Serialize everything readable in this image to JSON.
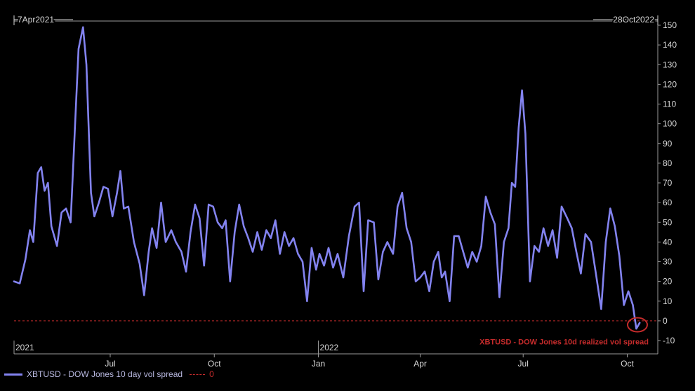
{
  "chart_data": {
    "type": "line",
    "range_start_label": "7Apr2021",
    "range_end_label": "28Oct2022",
    "ylim": [
      -10,
      150
    ],
    "y_ticks": [
      -10,
      0,
      10,
      20,
      30,
      40,
      50,
      60,
      70,
      80,
      90,
      100,
      110,
      120,
      130,
      140,
      150
    ],
    "x_ticks": [
      {
        "date": "2021-07-01",
        "label": "Jul"
      },
      {
        "date": "2021-10-01",
        "label": "Oct"
      },
      {
        "date": "2022-01-01",
        "label": "Jan"
      },
      {
        "date": "2022-04-01",
        "label": "Apr"
      },
      {
        "date": "2022-07-01",
        "label": "Jul"
      },
      {
        "date": "2022-10-01",
        "label": "Oct"
      }
    ],
    "year_labels": [
      {
        "date": "2021-04-07",
        "label": "2021"
      },
      {
        "date": "2022-01-01",
        "label": "2022"
      }
    ],
    "series": [
      {
        "name": "XBTUSD - DOW Jones 10 day vol spread",
        "color": "#8383f0",
        "points": [
          [
            "2021-04-07",
            20
          ],
          [
            "2021-04-12",
            19
          ],
          [
            "2021-04-17",
            31
          ],
          [
            "2021-04-21",
            46
          ],
          [
            "2021-04-24",
            40
          ],
          [
            "2021-04-28",
            75
          ],
          [
            "2021-05-01",
            78
          ],
          [
            "2021-05-04",
            66
          ],
          [
            "2021-05-07",
            70
          ],
          [
            "2021-05-10",
            48
          ],
          [
            "2021-05-15",
            38
          ],
          [
            "2021-05-19",
            55
          ],
          [
            "2021-05-23",
            57
          ],
          [
            "2021-05-27",
            50
          ],
          [
            "2021-05-31",
            100
          ],
          [
            "2021-06-03",
            138
          ],
          [
            "2021-06-07",
            149
          ],
          [
            "2021-06-10",
            130
          ],
          [
            "2021-06-14",
            65
          ],
          [
            "2021-06-17",
            53
          ],
          [
            "2021-06-21",
            60
          ],
          [
            "2021-06-25",
            68
          ],
          [
            "2021-06-29",
            67
          ],
          [
            "2021-07-03",
            53
          ],
          [
            "2021-07-07",
            65
          ],
          [
            "2021-07-10",
            76
          ],
          [
            "2021-07-13",
            57
          ],
          [
            "2021-07-17",
            58
          ],
          [
            "2021-07-22",
            40
          ],
          [
            "2021-07-27",
            29
          ],
          [
            "2021-07-31",
            13
          ],
          [
            "2021-08-04",
            35
          ],
          [
            "2021-08-07",
            47
          ],
          [
            "2021-08-11",
            37
          ],
          [
            "2021-08-15",
            60
          ],
          [
            "2021-08-19",
            40
          ],
          [
            "2021-08-24",
            46
          ],
          [
            "2021-08-28",
            40
          ],
          [
            "2021-09-02",
            35
          ],
          [
            "2021-09-06",
            25
          ],
          [
            "2021-09-10",
            45
          ],
          [
            "2021-09-14",
            59
          ],
          [
            "2021-09-18",
            52
          ],
          [
            "2021-09-22",
            28
          ],
          [
            "2021-09-26",
            59
          ],
          [
            "2021-09-30",
            58
          ],
          [
            "2021-10-04",
            50
          ],
          [
            "2021-10-08",
            47
          ],
          [
            "2021-10-11",
            51
          ],
          [
            "2021-10-15",
            20
          ],
          [
            "2021-10-19",
            45
          ],
          [
            "2021-10-23",
            59
          ],
          [
            "2021-10-27",
            48
          ],
          [
            "2021-10-31",
            42
          ],
          [
            "2021-11-04",
            35
          ],
          [
            "2021-11-08",
            45
          ],
          [
            "2021-11-12",
            36
          ],
          [
            "2021-11-16",
            46
          ],
          [
            "2021-11-20",
            42
          ],
          [
            "2021-11-24",
            51
          ],
          [
            "2021-11-28",
            34
          ],
          [
            "2021-12-02",
            45
          ],
          [
            "2021-12-06",
            38
          ],
          [
            "2021-12-10",
            42
          ],
          [
            "2021-12-14",
            34
          ],
          [
            "2021-12-18",
            30
          ],
          [
            "2021-12-22",
            10
          ],
          [
            "2021-12-26",
            37
          ],
          [
            "2021-12-30",
            26
          ],
          [
            "2022-01-02",
            34
          ],
          [
            "2022-01-06",
            28
          ],
          [
            "2022-01-10",
            37
          ],
          [
            "2022-01-14",
            27
          ],
          [
            "2022-01-18",
            34
          ],
          [
            "2022-01-23",
            22
          ],
          [
            "2022-01-28",
            43
          ],
          [
            "2022-02-02",
            58
          ],
          [
            "2022-02-06",
            60
          ],
          [
            "2022-02-10",
            15
          ],
          [
            "2022-02-14",
            51
          ],
          [
            "2022-02-19",
            50
          ],
          [
            "2022-02-23",
            21
          ],
          [
            "2022-02-27",
            35
          ],
          [
            "2022-03-03",
            40
          ],
          [
            "2022-03-08",
            34
          ],
          [
            "2022-03-12",
            58
          ],
          [
            "2022-03-16",
            65
          ],
          [
            "2022-03-20",
            47
          ],
          [
            "2022-03-24",
            40
          ],
          [
            "2022-03-28",
            20
          ],
          [
            "2022-04-01",
            22
          ],
          [
            "2022-04-05",
            25
          ],
          [
            "2022-04-09",
            15
          ],
          [
            "2022-04-13",
            30
          ],
          [
            "2022-04-17",
            35
          ],
          [
            "2022-04-20",
            22
          ],
          [
            "2022-04-23",
            25
          ],
          [
            "2022-04-27",
            10
          ],
          [
            "2022-05-01",
            43
          ],
          [
            "2022-05-05",
            43
          ],
          [
            "2022-05-09",
            35
          ],
          [
            "2022-05-13",
            27
          ],
          [
            "2022-05-17",
            35
          ],
          [
            "2022-05-21",
            30
          ],
          [
            "2022-05-25",
            38
          ],
          [
            "2022-05-29",
            63
          ],
          [
            "2022-06-02",
            55
          ],
          [
            "2022-06-06",
            49
          ],
          [
            "2022-06-10",
            12
          ],
          [
            "2022-06-14",
            40
          ],
          [
            "2022-06-18",
            47
          ],
          [
            "2022-06-21",
            70
          ],
          [
            "2022-06-24",
            68
          ],
          [
            "2022-06-27",
            98
          ],
          [
            "2022-06-30",
            117
          ],
          [
            "2022-07-03",
            95
          ],
          [
            "2022-07-07",
            20
          ],
          [
            "2022-07-11",
            38
          ],
          [
            "2022-07-15",
            35
          ],
          [
            "2022-07-19",
            47
          ],
          [
            "2022-07-23",
            38
          ],
          [
            "2022-07-27",
            46
          ],
          [
            "2022-07-31",
            32
          ],
          [
            "2022-08-04",
            58
          ],
          [
            "2022-08-09",
            52
          ],
          [
            "2022-08-13",
            47
          ],
          [
            "2022-08-17",
            35
          ],
          [
            "2022-08-21",
            24
          ],
          [
            "2022-08-25",
            44
          ],
          [
            "2022-08-30",
            40
          ],
          [
            "2022-09-03",
            25
          ],
          [
            "2022-09-08",
            6
          ],
          [
            "2022-09-12",
            40
          ],
          [
            "2022-09-16",
            57
          ],
          [
            "2022-09-20",
            48
          ],
          [
            "2022-09-24",
            33
          ],
          [
            "2022-09-28",
            8
          ],
          [
            "2022-10-02",
            15
          ],
          [
            "2022-10-06",
            8
          ],
          [
            "2022-10-09",
            -4
          ],
          [
            "2022-10-12",
            -1
          ]
        ]
      }
    ],
    "reference_line": {
      "value": 0,
      "label": "0",
      "color": "#c42b2b"
    },
    "annotation": {
      "text": "XBTUSD - DOW Jones 10d realized vol spread",
      "date": "2022-10-10",
      "value": -2
    },
    "grid": false,
    "legend_position": "bottom-left"
  }
}
